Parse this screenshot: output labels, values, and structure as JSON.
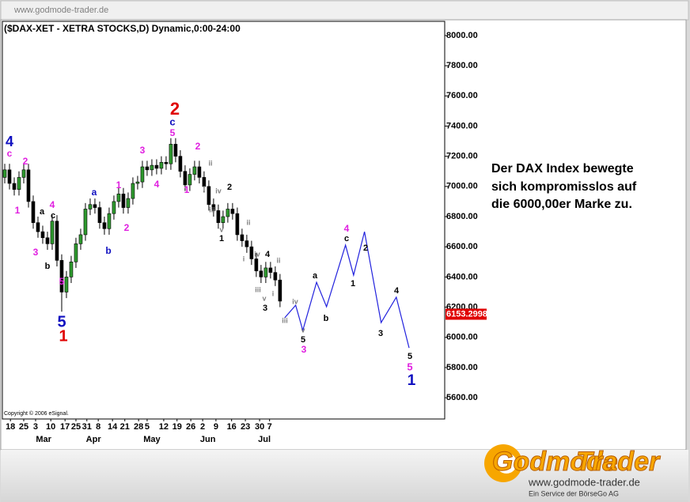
{
  "header": {
    "url": "www.godmode-trader.de"
  },
  "chart_data": {
    "type": "candlestick",
    "title": "($DAX-XET - XETRA STOCKS,D) Dynamic,0:00-24:00",
    "copyright": "Copyright © 2006 eSignal.",
    "up_color": "#2e9a2e",
    "down_color": "#000000",
    "ohlc": [
      [
        7060,
        7150,
        7020,
        7110
      ],
      [
        7110,
        7150,
        6980,
        7020
      ],
      [
        7020,
        7060,
        6940,
        6980
      ],
      [
        6980,
        7100,
        6940,
        7060
      ],
      [
        7060,
        7150,
        7020,
        7110
      ],
      [
        7110,
        7150,
        6860,
        6900
      ],
      [
        6900,
        6940,
        6720,
        6760
      ],
      [
        6760,
        6800,
        6660,
        6700
      ],
      [
        6700,
        6740,
        6620,
        6660
      ],
      [
        6660,
        6700,
        6580,
        6620
      ],
      [
        6620,
        6810,
        6580,
        6770
      ],
      [
        6770,
        6810,
        6470,
        6510
      ],
      [
        6510,
        6550,
        6170,
        6300
      ],
      [
        6300,
        6440,
        6260,
        6400
      ],
      [
        6400,
        6540,
        6360,
        6500
      ],
      [
        6500,
        6660,
        6460,
        6620
      ],
      [
        6620,
        6720,
        6580,
        6680
      ],
      [
        6680,
        6890,
        6640,
        6850
      ],
      [
        6850,
        6920,
        6810,
        6880
      ],
      [
        6880,
        6920,
        6820,
        6860
      ],
      [
        6860,
        6900,
        6720,
        6760
      ],
      [
        6760,
        6800,
        6680,
        6720
      ],
      [
        6720,
        6860,
        6680,
        6820
      ],
      [
        6820,
        6940,
        6780,
        6900
      ],
      [
        6900,
        6990,
        6860,
        6950
      ],
      [
        6950,
        6990,
        6820,
        6860
      ],
      [
        6860,
        6960,
        6820,
        6920
      ],
      [
        6920,
        7060,
        6880,
        7020
      ],
      [
        7020,
        7070,
        6980,
        7030
      ],
      [
        7030,
        7170,
        6990,
        7130
      ],
      [
        7130,
        7170,
        7070,
        7110
      ],
      [
        7110,
        7180,
        7070,
        7140
      ],
      [
        7140,
        7180,
        7080,
        7120
      ],
      [
        7120,
        7200,
        7080,
        7160
      ],
      [
        7160,
        7200,
        7110,
        7150
      ],
      [
        7150,
        7320,
        7110,
        7280
      ],
      [
        7280,
        7320,
        7160,
        7200
      ],
      [
        7200,
        7240,
        7060,
        7100
      ],
      [
        7100,
        7140,
        6970,
        7010
      ],
      [
        7010,
        7120,
        6970,
        7080
      ],
      [
        7080,
        7170,
        7040,
        7130
      ],
      [
        7130,
        7170,
        7020,
        7060
      ],
      [
        7060,
        7100,
        6960,
        7000
      ],
      [
        7000,
        7040,
        6840,
        6880
      ],
      [
        6880,
        6920,
        6800,
        6840
      ],
      [
        6840,
        6880,
        6720,
        6760
      ],
      [
        6760,
        6840,
        6720,
        6800
      ],
      [
        6800,
        6890,
        6760,
        6850
      ],
      [
        6850,
        6890,
        6780,
        6820
      ],
      [
        6820,
        6860,
        6640,
        6680
      ],
      [
        6680,
        6720,
        6600,
        6640
      ],
      [
        6640,
        6680,
        6560,
        6600
      ],
      [
        6600,
        6640,
        6480,
        6520
      ],
      [
        6520,
        6560,
        6400,
        6440
      ],
      [
        6440,
        6480,
        6360,
        6400
      ],
      [
        6400,
        6500,
        6360,
        6460
      ],
      [
        6460,
        6500,
        6390,
        6430
      ],
      [
        6430,
        6470,
        6340,
        6380
      ],
      [
        6380,
        6420,
        6200,
        6240
      ]
    ],
    "xlim": [
      -0.5,
      92.7
    ],
    "ylim": [
      5459,
      8094
    ],
    "yticks": [
      {
        "value": 5600,
        "label": "5600.00"
      },
      {
        "value": 5800,
        "label": "5800.00"
      },
      {
        "value": 6000,
        "label": "6000.00"
      },
      {
        "value": 6200,
        "label": "6200.00"
      },
      {
        "value": 6400,
        "label": "6400.00"
      },
      {
        "value": 6600,
        "label": "6600.00"
      },
      {
        "value": 6800,
        "label": "6800.00"
      },
      {
        "value": 7000,
        "label": "7000.00"
      },
      {
        "value": 7200,
        "label": "7200.00"
      },
      {
        "value": 7400,
        "label": "7400.00"
      },
      {
        "value": 7600,
        "label": "7600.00"
      },
      {
        "value": 7800,
        "label": "7800.00"
      },
      {
        "value": 8000,
        "label": "8000.00"
      }
    ],
    "xticks": [
      {
        "value": 1.2,
        "label": "18"
      },
      {
        "value": 4,
        "label": "25"
      },
      {
        "value": 6.5,
        "label": "3"
      },
      {
        "value": 9.7,
        "label": "10"
      },
      {
        "value": 12.7,
        "label": "17"
      },
      {
        "value": 15,
        "label": "25"
      },
      {
        "value": 17.3,
        "label": "31"
      },
      {
        "value": 19.7,
        "label": "8"
      },
      {
        "value": 22.7,
        "label": "14"
      },
      {
        "value": 25.3,
        "label": "21"
      },
      {
        "value": 28.2,
        "label": "28"
      },
      {
        "value": 30,
        "label": "5"
      },
      {
        "value": 33.5,
        "label": "12"
      },
      {
        "value": 36.3,
        "label": "19"
      },
      {
        "value": 39.2,
        "label": "26"
      },
      {
        "value": 41.7,
        "label": "2"
      },
      {
        "value": 44.5,
        "label": "9"
      },
      {
        "value": 47.8,
        "label": "16"
      },
      {
        "value": 50.7,
        "label": "23"
      },
      {
        "value": 53.7,
        "label": "30"
      },
      {
        "value": 55.8,
        "label": "7"
      }
    ],
    "xmonths": [
      {
        "value": 8.2,
        "label": "Mar"
      },
      {
        "value": 18.7,
        "label": "Apr"
      },
      {
        "value": 31,
        "label": "May"
      },
      {
        "value": 42.8,
        "label": "Jun"
      },
      {
        "value": 54.7,
        "label": "Jul"
      }
    ],
    "last_price": 6153.2998,
    "projection": {
      "color": "#2222dd",
      "x": [
        59,
        61.3,
        62.8,
        65.7,
        67.8,
        71.8,
        73.5,
        75.8,
        79.3,
        82.5,
        85.2
      ],
      "values": [
        6130,
        6213,
        6046,
        6365,
        6203,
        6611,
        6412,
        6700,
        6098,
        6266,
        5930
      ]
    },
    "annotations": [
      {
        "text": "4",
        "color": "#1010c0"
      },
      {
        "text": "c",
        "color": "#e020e0"
      },
      {
        "text": "2",
        "color": "#e020e0"
      },
      {
        "text": "1",
        "color": "#e020e0"
      },
      {
        "text": "3",
        "color": "#e020e0"
      },
      {
        "text": "4",
        "color": "#e020e0"
      },
      {
        "text": "a",
        "color": "#000000"
      },
      {
        "text": "c",
        "color": "#000000"
      },
      {
        "text": "b",
        "color": "#000000"
      },
      {
        "text": "5",
        "color": "#e020e0"
      },
      {
        "text": "5",
        "color": "#1010c0"
      },
      {
        "text": "1",
        "color": "#e00000"
      },
      {
        "text": "a",
        "color": "#1010c0"
      },
      {
        "text": "b",
        "color": "#1010c0"
      },
      {
        "text": "1",
        "color": "#e020e0"
      },
      {
        "text": "2",
        "color": "#e020e0"
      },
      {
        "text": "3",
        "color": "#e020e0"
      },
      {
        "text": "4",
        "color": "#e020e0"
      },
      {
        "text": "2",
        "color": "#e00000"
      },
      {
        "text": "c",
        "color": "#1010c0"
      },
      {
        "text": "5",
        "color": "#e020e0"
      },
      {
        "text": "2",
        "color": "#e020e0"
      },
      {
        "text": "1",
        "color": "#e020e0"
      },
      {
        "text": "ii",
        "color": "#808080"
      },
      {
        "text": "i",
        "color": "#808080"
      },
      {
        "text": "iv",
        "color": "#808080"
      },
      {
        "text": "2",
        "color": "#000000"
      },
      {
        "text": "iii",
        "color": "#808080"
      },
      {
        "text": "v",
        "color": "#808080"
      },
      {
        "text": "1",
        "color": "#000000"
      },
      {
        "text": "ii",
        "color": "#808080"
      },
      {
        "text": "i",
        "color": "#808080"
      },
      {
        "text": "iv",
        "color": "#808080"
      },
      {
        "text": "4",
        "color": "#000000"
      },
      {
        "text": "ii",
        "color": "#808080"
      },
      {
        "text": "iii",
        "color": "#808080"
      },
      {
        "text": "v",
        "color": "#808080"
      },
      {
        "text": "i",
        "color": "#808080"
      },
      {
        "text": "3",
        "color": "#000000"
      },
      {
        "text": "iii",
        "color": "#808080"
      },
      {
        "text": "iv",
        "color": "#808080"
      },
      {
        "text": "v",
        "color": "#808080"
      },
      {
        "text": "5",
        "color": "#000000"
      },
      {
        "text": "3",
        "color": "#e020e0"
      },
      {
        "text": "a",
        "color": "#000000"
      },
      {
        "text": "b",
        "color": "#000000"
      },
      {
        "text": "4",
        "color": "#e020e0"
      },
      {
        "text": "c",
        "color": "#000000"
      },
      {
        "text": "1",
        "color": "#000000"
      },
      {
        "text": "2",
        "color": "#000000"
      },
      {
        "text": "3",
        "color": "#000000"
      },
      {
        "text": "4",
        "color": "#000000"
      },
      {
        "text": "5",
        "color": "#000000"
      },
      {
        "text": "5",
        "color": "#e020e0"
      },
      {
        "text": "1",
        "color": "#1010c0"
      }
    ]
  },
  "commentary": [
    "Der DAX Index bewegte",
    "sich kompromisslos auf",
    "die 6000,00er Marke zu."
  ],
  "footer": {
    "logo_a": "Godmode",
    "logo_b": "Trader",
    "url": "www.godmode-trader.de",
    "tagline": "Ein Service der BörseGo AG"
  }
}
